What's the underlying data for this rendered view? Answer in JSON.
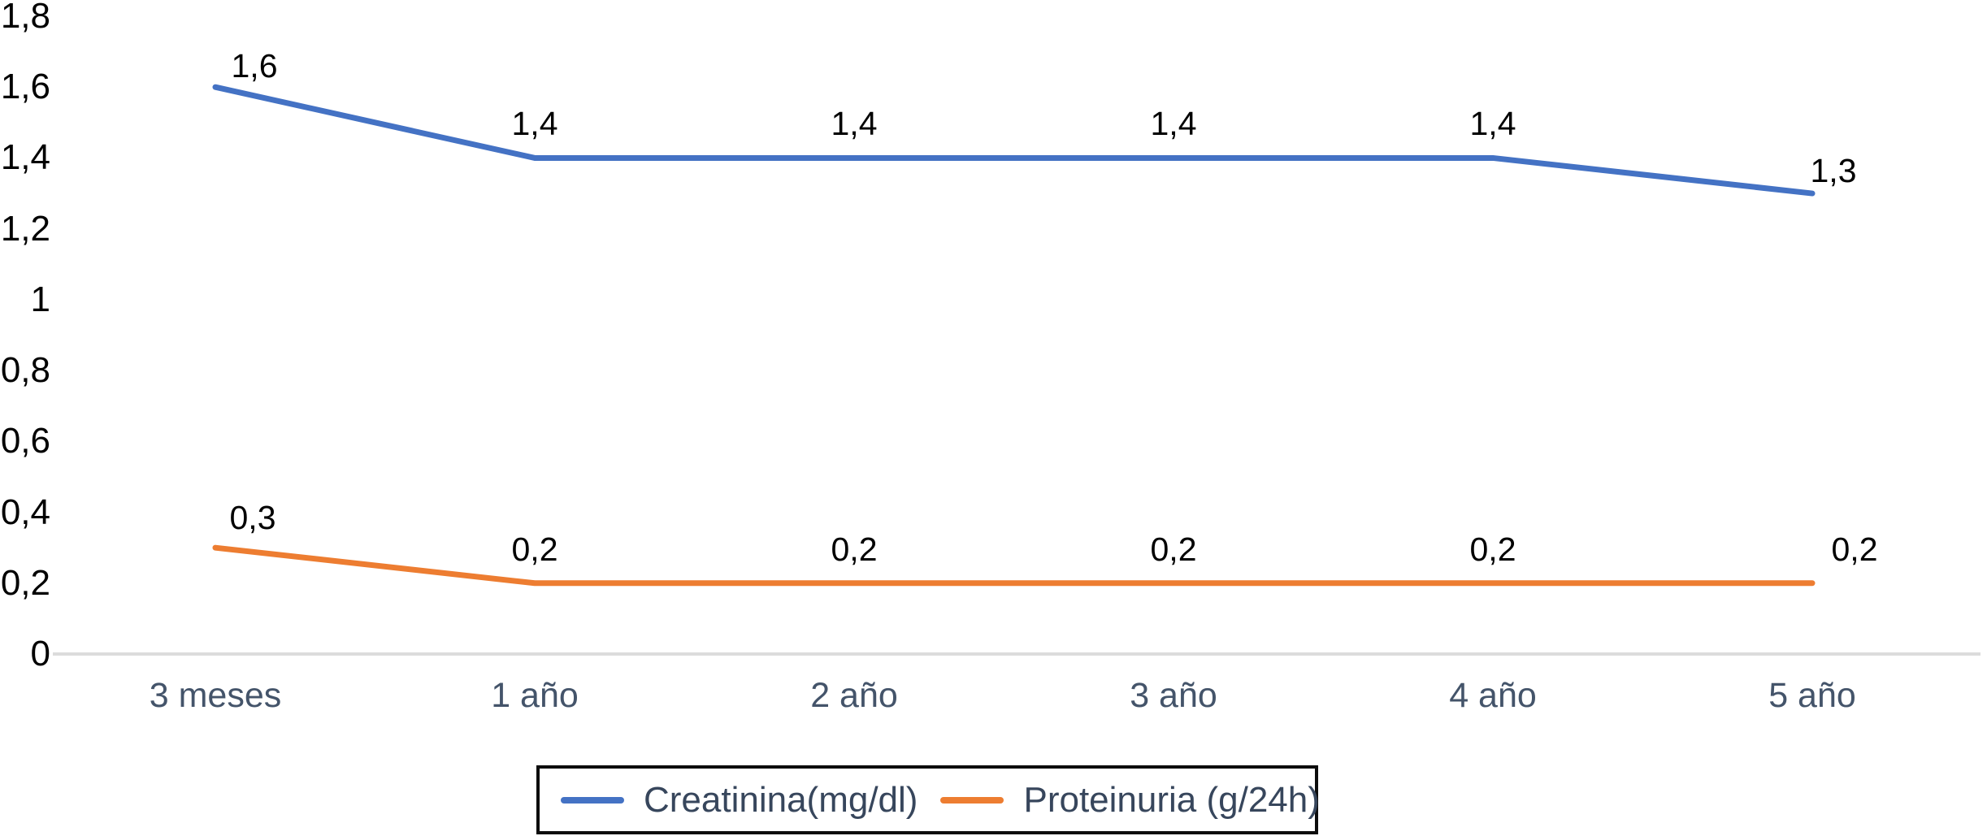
{
  "chart_data": {
    "type": "line",
    "title": "",
    "xlabel": "",
    "ylabel": "",
    "grid": false,
    "legend_position": "bottom",
    "ylim": [
      0,
      1.8
    ],
    "categories": [
      "3 meses",
      "1 año",
      "2 año",
      "3 año",
      "4 año",
      "5 año"
    ],
    "y_ticks": [
      {
        "v": 1.8,
        "label": "1,8"
      },
      {
        "v": 1.6,
        "label": "1,6"
      },
      {
        "v": 1.4,
        "label": "1,4"
      },
      {
        "v": 1.2,
        "label": "1,2"
      },
      {
        "v": 1.0,
        "label": "1"
      },
      {
        "v": 0.8,
        "label": "0,8"
      },
      {
        "v": 0.6,
        "label": "0,6"
      },
      {
        "v": 0.4,
        "label": "0,4"
      },
      {
        "v": 0.2,
        "label": "0,2"
      },
      {
        "v": 0.0,
        "label": "0"
      }
    ],
    "series": [
      {
        "id": "creatinina-line",
        "name": "Creatinina(mg/dl)",
        "color": "#4472C4",
        "values": [
          1.6,
          1.4,
          1.4,
          1.4,
          1.4,
          1.3
        ],
        "labels": [
          "1,6",
          "1,4",
          "1,4",
          "1,4",
          "1,4",
          "1,3"
        ],
        "label_offsets": [
          [
            48,
            16
          ],
          [
            0,
            0
          ],
          [
            0,
            0
          ],
          [
            0,
            0
          ],
          [
            0,
            0
          ],
          [
            26,
            14
          ]
        ]
      },
      {
        "id": "proteinuria-line",
        "name": "Proteinuria (g/24h)",
        "color": "#ED7D31",
        "values": [
          0.3,
          0.2,
          0.2,
          0.2,
          0.2,
          0.2
        ],
        "labels": [
          "0,3",
          "0,2",
          "0,2",
          "0,2",
          "0,2",
          "0,2"
        ],
        "label_offsets": [
          [
            46,
            5
          ],
          [
            0,
            0
          ],
          [
            0,
            0
          ],
          [
            0,
            0
          ],
          [
            0,
            0
          ],
          [
            52,
            0
          ]
        ]
      }
    ]
  },
  "colors": {
    "axis_line": "#DCDCDC",
    "y_tick_label": "#000000",
    "x_axis_label": "#44546A",
    "data_label": "#000000",
    "legend_text": "#37465C",
    "legend_border": "#0d0d0d"
  }
}
